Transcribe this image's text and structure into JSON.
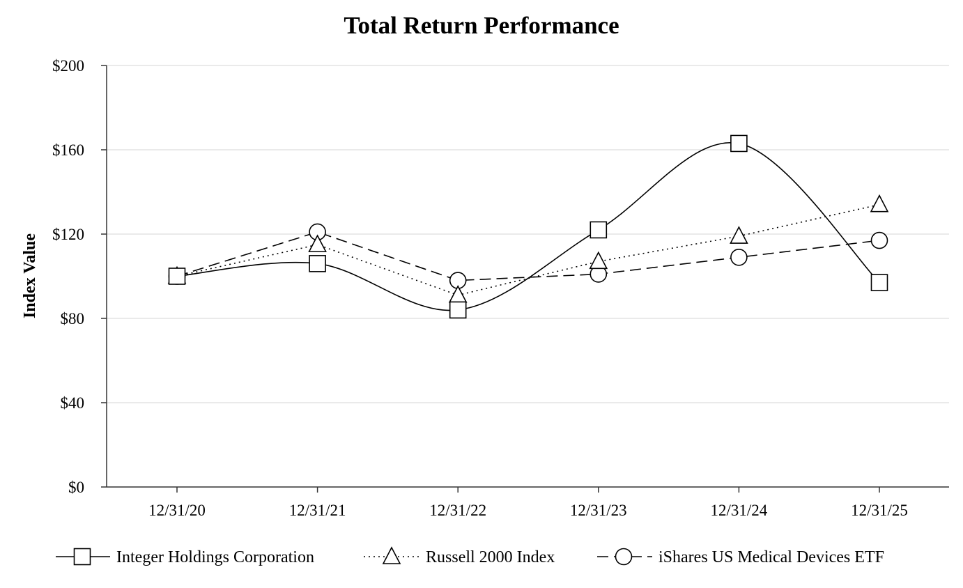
{
  "chart_data": {
    "type": "line",
    "title": "Total Return Performance",
    "xlabel": "",
    "ylabel": "Index Value",
    "categories": [
      "12/31/20",
      "12/31/21",
      "12/31/22",
      "12/31/23",
      "12/31/24",
      "12/31/25"
    ],
    "ylim": [
      0,
      200
    ],
    "yticks": [
      0,
      40,
      80,
      120,
      160,
      200
    ],
    "ytick_labels": [
      "$0",
      "$40",
      "$80",
      "$120",
      "$160",
      "$200"
    ],
    "grid": true,
    "legend_position": "bottom",
    "series": [
      {
        "name": "Integer Holdings Corporation",
        "values": [
          100,
          106,
          84,
          122,
          163,
          97
        ],
        "marker": "square",
        "line_style": "solid",
        "color": "#000000"
      },
      {
        "name": "Russell 2000 Index",
        "values": [
          100,
          115,
          91,
          107,
          119,
          134
        ],
        "marker": "triangle",
        "line_style": "dotted",
        "color": "#000000"
      },
      {
        "name": "iShares US Medical Devices ETF",
        "values": [
          100,
          121,
          98,
          101,
          109,
          117
        ],
        "marker": "circle",
        "line_style": "dashed",
        "color": "#000000"
      }
    ]
  }
}
